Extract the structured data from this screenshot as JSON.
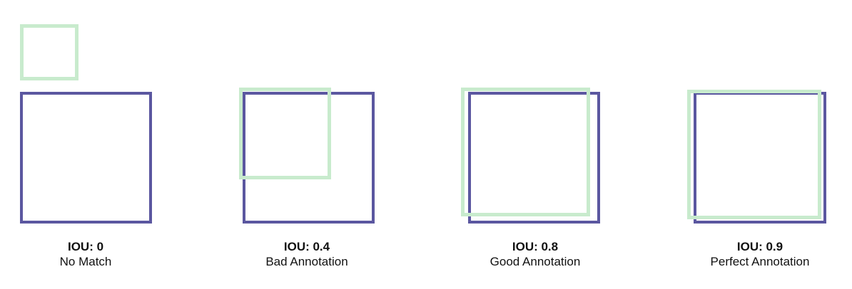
{
  "colors": {
    "ground_truth_box": "#5b57a0",
    "prediction_box": "#c8ebcd"
  },
  "examples": [
    {
      "iou_label": "IOU: 0",
      "iou_value": 0,
      "verdict": "No Match"
    },
    {
      "iou_label": "IOU: 0.4",
      "iou_value": 0.4,
      "verdict": "Bad Annotation"
    },
    {
      "iou_label": "IOU: 0.8",
      "iou_value": 0.8,
      "verdict": "Good Annotation"
    },
    {
      "iou_label": "IOU: 0.9",
      "iou_value": 0.9,
      "verdict": "Perfect Annotation"
    }
  ]
}
